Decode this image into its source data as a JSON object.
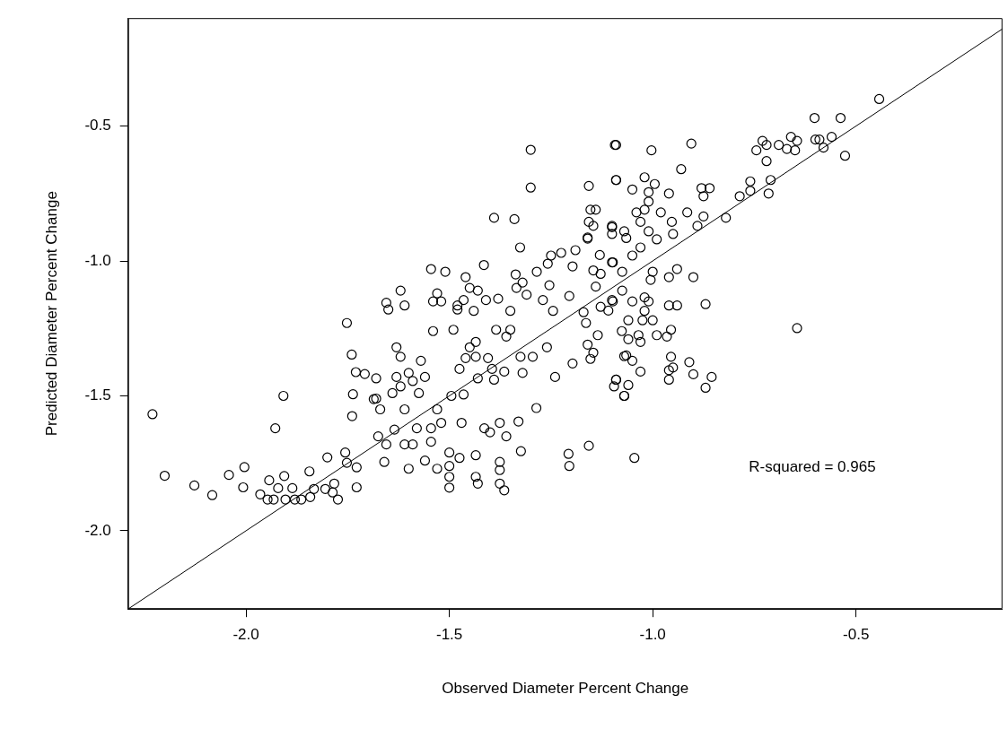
{
  "chart_data": {
    "type": "scatter",
    "xlabel": "Observed Diameter Percent Change",
    "ylabel": "Predicted Diameter Percent Change",
    "annotations": [
      "R-squared = 0.965"
    ],
    "xlim": [
      -2.29,
      -0.14
    ],
    "ylim": [
      -2.29,
      -0.1
    ],
    "xticks": [
      {
        "value": -2,
        "label": "-2.0"
      },
      -1.5,
      {
        "value": -1,
        "label": "-1.0"
      },
      -0.5
    ],
    "yticks": [
      {
        "value": -2,
        "label": "-2.0"
      },
      -1.5,
      {
        "value": -1,
        "label": "-1.0"
      },
      -0.5
    ],
    "grid": false,
    "legend": false,
    "series": [
      {
        "type": "scatter",
        "marker": "circle",
        "color": "#000000",
        "x": [
          -0.443,
          -0.602,
          -0.538,
          -0.527,
          -0.56,
          -0.59,
          -0.6,
          -0.58,
          -0.645,
          -0.66,
          -0.65,
          -0.67,
          -0.69,
          -0.73,
          -0.72,
          -0.745,
          -0.72,
          -0.71,
          -0.715,
          -0.76,
          -0.76,
          -0.786,
          -0.82,
          -0.905,
          -0.93,
          -0.86,
          -0.88,
          -0.875,
          -0.915,
          -0.875,
          -0.89,
          -0.953,
          -0.95,
          -0.96,
          -0.98,
          -0.99,
          -1.003,
          -0.995,
          -1.02,
          -1.01,
          -1.01,
          -1.05,
          -1.09,
          -1.09,
          -1.04,
          -1.02,
          -1.03,
          -1.01,
          -1.03,
          -1.05,
          -1.1,
          -1.07,
          -1.065,
          -1.1,
          -1.0,
          -1.005,
          -0.96,
          -0.94,
          -0.9,
          -1.1,
          -1.075,
          -0.87,
          -0.96,
          -0.94,
          -1.02,
          -1.01,
          -1.05,
          -1.02,
          -1.0,
          -1.025,
          -1.075,
          -1.1,
          -0.965,
          -0.99,
          -0.955,
          -1.035,
          -1.06,
          -1.06,
          -1.03,
          -1.065,
          -1.05,
          -1.03,
          -0.955,
          -0.95,
          -0.96,
          -0.96,
          -0.91,
          -0.9,
          -0.855,
          -0.87,
          -1.09,
          -1.06,
          -1.07,
          -1.095,
          -1.045,
          -0.645,
          -1.326,
          -1.545,
          -1.51,
          -1.415,
          -1.62,
          -1.655,
          -1.65,
          -1.61,
          -1.53,
          -1.54,
          -1.52,
          -1.48,
          -1.48,
          -1.465,
          -1.46,
          -1.45,
          -1.43,
          -1.41,
          -1.38,
          -1.44,
          -1.35,
          -1.54,
          -1.49,
          -1.385,
          -1.36,
          -1.35,
          -1.63,
          -1.62,
          -1.57,
          -1.435,
          -1.45,
          -1.46,
          -1.435,
          -1.475,
          -1.405,
          -1.395,
          -1.365,
          -1.43,
          -1.39,
          -1.325,
          -1.295,
          -1.32,
          -1.26,
          -1.24,
          -1.197,
          -1.68,
          -1.63,
          -1.6,
          -1.59,
          -1.56,
          -1.62,
          -1.64,
          -1.575,
          -1.68,
          -1.67,
          -1.61,
          -1.53,
          -1.495,
          -1.465,
          -1.58,
          -1.545,
          -1.52,
          -1.635,
          -1.675,
          -1.655,
          -1.61,
          -1.59,
          -1.545,
          -1.47,
          -1.414,
          -1.4,
          -1.376,
          -1.36,
          -1.33,
          -1.286,
          -1.66,
          -1.6,
          -1.56,
          -1.53,
          -1.5,
          -1.475,
          -1.5,
          -1.5,
          -1.5,
          -1.435,
          -1.435,
          -1.43,
          -1.376,
          -1.376,
          -1.376,
          -1.365,
          -1.324,
          -1.207,
          -1.205,
          -1.157,
          -1.225,
          -1.19,
          -1.25,
          -1.285,
          -1.337,
          -1.32,
          -1.335,
          -1.31,
          -1.258,
          -1.254,
          -1.27,
          -1.245,
          -1.205,
          -1.17,
          -1.164,
          -1.135,
          -1.16,
          -1.146,
          -1.153,
          -1.197,
          -1.16,
          -1.146,
          -1.128,
          -1.13,
          -1.098,
          -1.14,
          -1.128,
          -1.098,
          -1.109,
          -1.076,
          -1.09,
          -1.07,
          -1.07,
          -1.3,
          -1.3,
          -1.093,
          -1.09,
          -1.157,
          -1.153,
          -1.14,
          -1.39,
          -1.34,
          -1.157,
          -1.146,
          -1.1,
          -1.16,
          -2.23,
          -2.2,
          -2.127,
          -2.083,
          -2.042,
          -2.004,
          -2.007,
          -1.908,
          -1.928,
          -1.943,
          -1.965,
          -1.947,
          -1.932,
          -1.921,
          -1.906,
          -1.903,
          -1.886,
          -1.88,
          -1.864,
          -1.844,
          -1.842,
          -1.833,
          -1.8,
          -1.805,
          -1.783,
          -1.787,
          -1.774,
          -1.756,
          -1.752,
          -1.728,
          -1.728,
          -1.752,
          -1.74,
          -1.73,
          -1.708,
          -1.737,
          -1.739,
          -1.686
        ],
        "values": [
          -0.4,
          -0.47,
          -0.47,
          -0.61,
          -0.54,
          -0.55,
          -0.55,
          -0.58,
          -0.555,
          -0.54,
          -0.59,
          -0.585,
          -0.57,
          -0.555,
          -0.57,
          -0.59,
          -0.63,
          -0.7,
          -0.75,
          -0.705,
          -0.74,
          -0.76,
          -0.84,
          -0.565,
          -0.66,
          -0.73,
          -0.73,
          -0.76,
          -0.82,
          -0.835,
          -0.87,
          -0.855,
          -0.9,
          -0.75,
          -0.82,
          -0.92,
          -0.59,
          -0.715,
          -0.69,
          -0.745,
          -0.78,
          -0.735,
          -0.57,
          -0.7,
          -0.82,
          -0.81,
          -0.855,
          -0.89,
          -0.95,
          -0.98,
          -0.875,
          -0.89,
          -0.915,
          -0.9,
          -1.04,
          -1.07,
          -1.06,
          -1.03,
          -1.06,
          -1.005,
          -1.04,
          -1.16,
          -1.165,
          -1.165,
          -1.135,
          -1.15,
          -1.15,
          -1.185,
          -1.22,
          -1.22,
          -1.11,
          -1.145,
          -1.28,
          -1.275,
          -1.255,
          -1.275,
          -1.22,
          -1.29,
          -1.3,
          -1.35,
          -1.37,
          -1.41,
          -1.355,
          -1.395,
          -1.405,
          -1.44,
          -1.375,
          -1.42,
          -1.43,
          -1.47,
          -1.44,
          -1.46,
          -1.5,
          -1.465,
          -1.73,
          -1.249,
          -0.95,
          -1.03,
          -1.04,
          -1.015,
          -1.11,
          -1.155,
          -1.18,
          -1.165,
          -1.12,
          -1.15,
          -1.15,
          -1.165,
          -1.18,
          -1.145,
          -1.06,
          -1.1,
          -1.11,
          -1.145,
          -1.14,
          -1.185,
          -1.185,
          -1.26,
          -1.255,
          -1.255,
          -1.28,
          -1.255,
          -1.32,
          -1.355,
          -1.37,
          -1.3,
          -1.32,
          -1.36,
          -1.355,
          -1.4,
          -1.36,
          -1.4,
          -1.41,
          -1.435,
          -1.44,
          -1.355,
          -1.355,
          -1.415,
          -1.32,
          -1.43,
          -1.38,
          -1.435,
          -1.43,
          -1.415,
          -1.445,
          -1.43,
          -1.465,
          -1.49,
          -1.49,
          -1.51,
          -1.55,
          -1.55,
          -1.55,
          -1.5,
          -1.495,
          -1.62,
          -1.62,
          -1.6,
          -1.625,
          -1.65,
          -1.68,
          -1.68,
          -1.68,
          -1.67,
          -1.6,
          -1.62,
          -1.635,
          -1.6,
          -1.65,
          -1.595,
          -1.545,
          -1.745,
          -1.77,
          -1.74,
          -1.77,
          -1.71,
          -1.73,
          -1.76,
          -1.8,
          -1.84,
          -1.72,
          -1.8,
          -1.825,
          -1.745,
          -1.775,
          -1.825,
          -1.85,
          -1.705,
          -1.715,
          -1.76,
          -1.685,
          -0.97,
          -0.96,
          -0.98,
          -1.04,
          -1.05,
          -1.08,
          -1.1,
          -1.125,
          -1.01,
          -1.09,
          -1.145,
          -1.185,
          -1.13,
          -1.19,
          -1.23,
          -1.275,
          -1.31,
          -1.34,
          -1.363,
          -1.02,
          -0.917,
          -1.035,
          -1.048,
          -0.978,
          -1.005,
          -1.095,
          -1.17,
          -1.15,
          -1.184,
          -1.26,
          -1.44,
          -1.5,
          -1.353,
          -0.588,
          -0.728,
          -0.57,
          -0.7,
          -0.722,
          -0.81,
          -0.81,
          -0.84,
          -0.845,
          -0.855,
          -0.87,
          -0.87,
          -0.913,
          -1.568,
          -1.796,
          -1.832,
          -1.868,
          -1.793,
          -1.764,
          -1.839,
          -1.5,
          -1.62,
          -1.813,
          -1.865,
          -1.884,
          -1.884,
          -1.842,
          -1.797,
          -1.884,
          -1.842,
          -1.884,
          -1.884,
          -1.78,
          -1.875,
          -1.845,
          -1.728,
          -1.845,
          -1.825,
          -1.858,
          -1.884,
          -1.71,
          -1.748,
          -1.765,
          -1.839,
          -1.23,
          -1.347,
          -1.412,
          -1.419,
          -1.494,
          -1.575,
          -1.512
        ]
      },
      {
        "type": "line",
        "marker": "none",
        "color": "#000000",
        "x": [
          -2.29,
          -0.14
        ],
        "values": [
          -2.29,
          -0.14
        ]
      }
    ]
  }
}
